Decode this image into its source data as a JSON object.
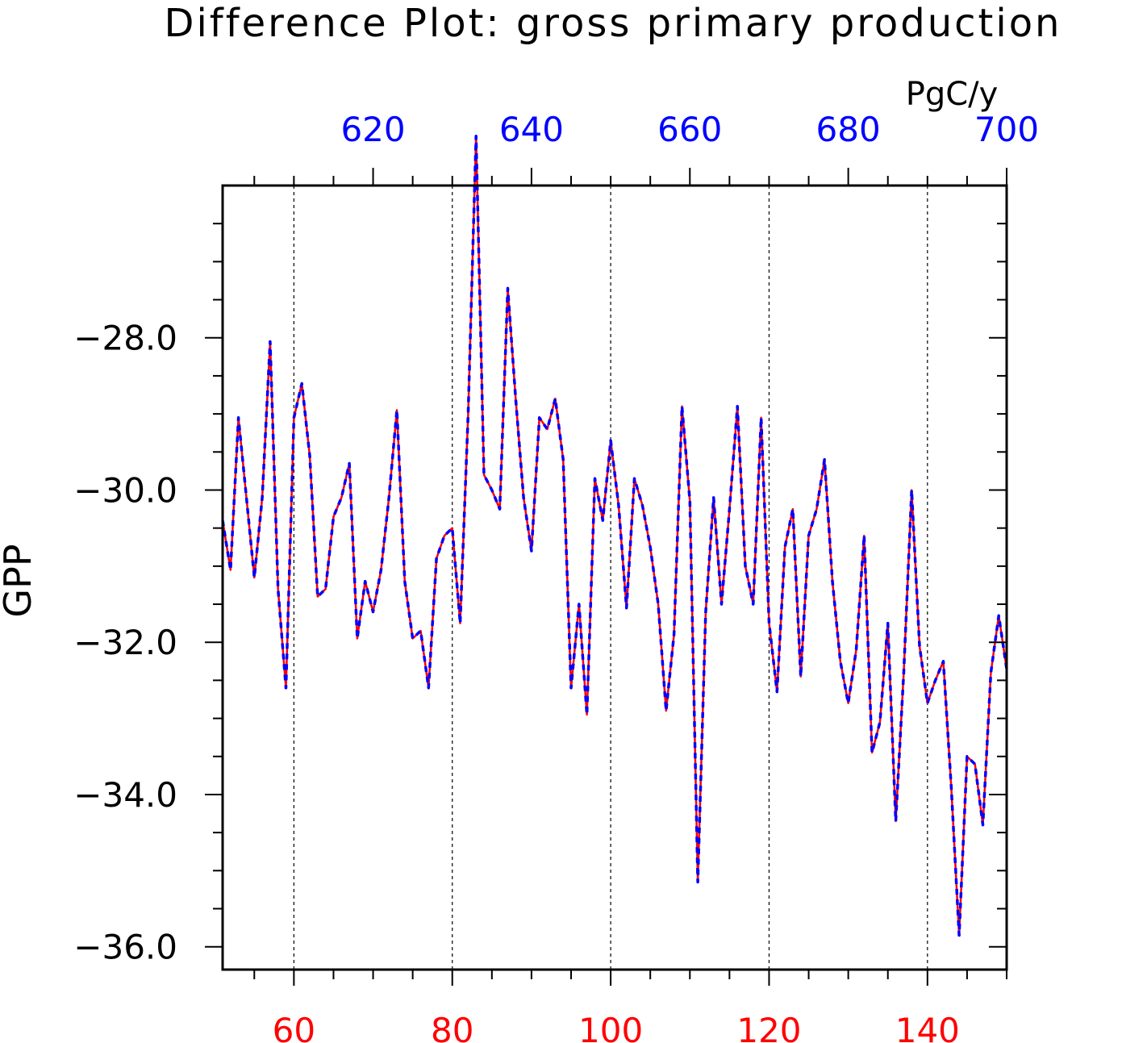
{
  "chart_data": {
    "type": "line",
    "title": "Difference Plot: gross primary production",
    "units": "PgC/y",
    "ylabel": "GPP",
    "xlabel": "",
    "x_bottom": {
      "range": [
        51,
        150
      ],
      "ticks": [
        60,
        80,
        100,
        120,
        140
      ],
      "tick_labels": [
        "60",
        "80",
        "100",
        "120",
        "140"
      ],
      "color": "#ff0000"
    },
    "x_top": {
      "range": [
        601,
        700
      ],
      "ticks": [
        620,
        640,
        660,
        680,
        700
      ],
      "tick_labels": [
        "620",
        "640",
        "660",
        "680",
        "700"
      ],
      "color": "#0000ff"
    },
    "ylim": [
      -36.3,
      -26.0
    ],
    "y_ticks": [
      -36,
      -34,
      -32,
      -30,
      -28
    ],
    "y_tick_labels": [
      "−36.0",
      "−34.0",
      "−32.0",
      "−30.0",
      "−28.0"
    ],
    "grid": "vertical dashed at major x ticks",
    "x": [
      51,
      52,
      53,
      54,
      55,
      56,
      57,
      58,
      59,
      60,
      61,
      62,
      63,
      64,
      65,
      66,
      67,
      68,
      69,
      70,
      71,
      72,
      73,
      74,
      75,
      76,
      77,
      78,
      79,
      80,
      81,
      82,
      83,
      84,
      85,
      86,
      87,
      88,
      89,
      90,
      91,
      92,
      93,
      94,
      95,
      96,
      97,
      98,
      99,
      100,
      101,
      102,
      103,
      104,
      105,
      106,
      107,
      108,
      109,
      110,
      111,
      112,
      113,
      114,
      115,
      116,
      117,
      118,
      119,
      120,
      121,
      122,
      123,
      124,
      125,
      126,
      127,
      128,
      129,
      130,
      131,
      132,
      133,
      134,
      135,
      136,
      137,
      138,
      139,
      140,
      141,
      142,
      143,
      144,
      145,
      146,
      147,
      148,
      149,
      150
    ],
    "series": [
      {
        "color": "#ff0000",
        "style": "solid",
        "values": [
          -30.4,
          -31.05,
          -29.05,
          -30.1,
          -31.15,
          -30.1,
          -28.05,
          -31.3,
          -32.6,
          -29.05,
          -28.6,
          -29.55,
          -31.4,
          -31.3,
          -30.35,
          -30.1,
          -29.65,
          -31.95,
          -31.2,
          -31.6,
          -31.05,
          -30.1,
          -28.95,
          -31.2,
          -31.95,
          -31.85,
          -32.6,
          -30.9,
          -30.6,
          -30.5,
          -31.75,
          -29.0,
          -25.35,
          -29.8,
          -30.0,
          -30.25,
          -27.35,
          -28.8,
          -30.1,
          -30.8,
          -29.05,
          -29.2,
          -28.8,
          -29.6,
          -32.6,
          -31.5,
          -32.95,
          -29.85,
          -30.4,
          -29.35,
          -30.2,
          -31.55,
          -29.85,
          -30.2,
          -30.75,
          -31.5,
          -32.9,
          -31.9,
          -28.9,
          -30.15,
          -35.15,
          -31.6,
          -30.1,
          -31.5,
          -30.25,
          -28.9,
          -31.0,
          -31.5,
          -29.05,
          -31.75,
          -32.65,
          -30.75,
          -30.25,
          -32.45,
          -30.6,
          -30.25,
          -29.6,
          -31.2,
          -32.25,
          -32.8,
          -32.1,
          -30.6,
          -33.45,
          -33.05,
          -31.75,
          -34.35,
          -32.4,
          -30.0,
          -32.05,
          -32.8,
          -32.5,
          -32.25,
          -33.9,
          -35.85,
          -33.5,
          -33.6,
          -34.4,
          -32.4,
          -31.65,
          -32.35
        ]
      },
      {
        "color": "#0000ff",
        "style": "dashed",
        "values": [
          -30.4,
          -31.05,
          -29.05,
          -30.1,
          -31.15,
          -30.1,
          -28.05,
          -31.3,
          -32.6,
          -29.05,
          -28.6,
          -29.55,
          -31.4,
          -31.3,
          -30.35,
          -30.1,
          -29.65,
          -31.95,
          -31.2,
          -31.6,
          -31.05,
          -30.1,
          -28.95,
          -31.2,
          -31.95,
          -31.85,
          -32.6,
          -30.9,
          -30.6,
          -30.5,
          -31.75,
          -29.0,
          -25.35,
          -29.8,
          -30.0,
          -30.25,
          -27.35,
          -28.8,
          -30.1,
          -30.8,
          -29.05,
          -29.2,
          -28.8,
          -29.6,
          -32.6,
          -31.5,
          -32.95,
          -29.85,
          -30.4,
          -29.35,
          -30.2,
          -31.55,
          -29.85,
          -30.2,
          -30.75,
          -31.5,
          -32.9,
          -31.9,
          -28.9,
          -30.15,
          -35.15,
          -31.6,
          -30.1,
          -31.5,
          -30.25,
          -28.9,
          -31.0,
          -31.5,
          -29.05,
          -31.75,
          -32.65,
          -30.75,
          -30.25,
          -32.45,
          -30.6,
          -30.25,
          -29.6,
          -31.2,
          -32.25,
          -32.8,
          -32.1,
          -30.6,
          -33.45,
          -33.05,
          -31.75,
          -34.35,
          -32.4,
          -30.0,
          -32.05,
          -32.8,
          -32.5,
          -32.25,
          -33.9,
          -35.85,
          -33.5,
          -33.6,
          -34.4,
          -32.4,
          -31.65,
          -32.35
        ]
      }
    ]
  }
}
